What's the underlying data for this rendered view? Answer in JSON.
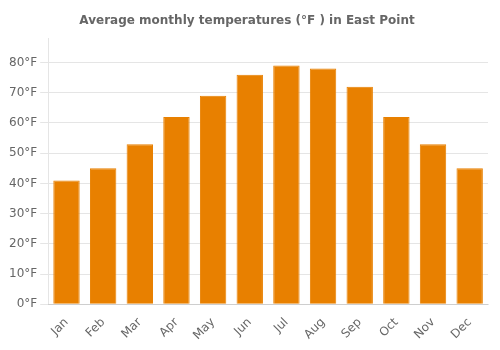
{
  "chart_data": {
    "type": "bar",
    "title": "Average monthly temperatures (°F ) in East Point",
    "categories": [
      "Jan",
      "Feb",
      "Mar",
      "Apr",
      "May",
      "Jun",
      "Jul",
      "Aug",
      "Sep",
      "Oct",
      "Nov",
      "Dec"
    ],
    "values": [
      41,
      45,
      53,
      62,
      69,
      76,
      79,
      78,
      72,
      62,
      53,
      45
    ],
    "color": "#E88000",
    "ylim": [
      0,
      88
    ],
    "yticks": [
      {
        "value": 0,
        "label": "0°F"
      },
      {
        "value": 10,
        "label": "10°F"
      },
      {
        "value": 20,
        "label": "20°F"
      },
      {
        "value": 30,
        "label": "30°F"
      },
      {
        "value": 40,
        "label": "40°F"
      },
      {
        "value": 50,
        "label": "50°F"
      },
      {
        "value": 60,
        "label": "60°F"
      },
      {
        "value": 70,
        "label": "70°F"
      },
      {
        "value": 80,
        "label": "80°F"
      }
    ],
    "grid": true
  }
}
